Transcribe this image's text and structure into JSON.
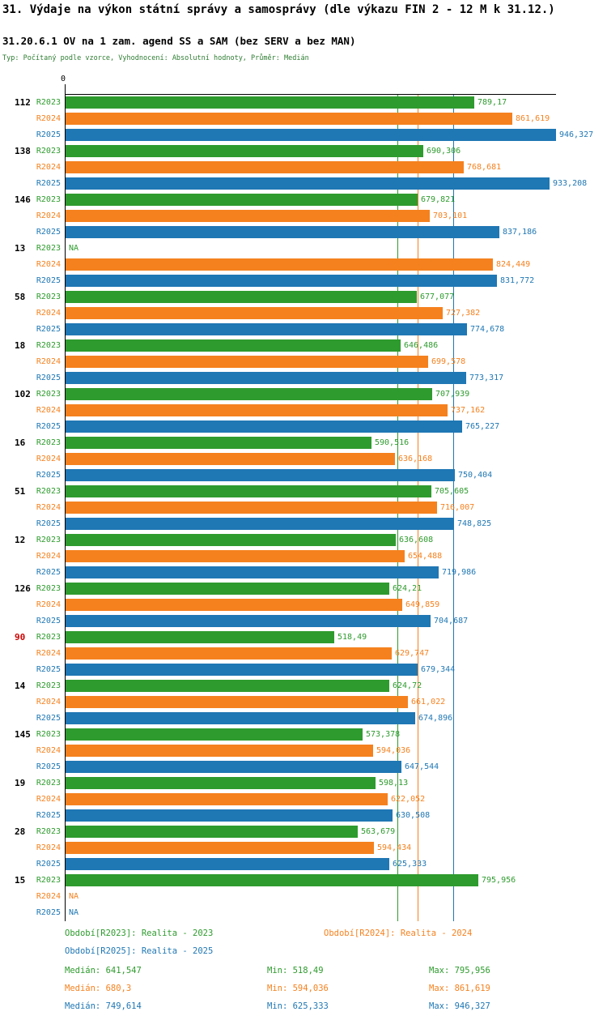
{
  "header": {
    "title": "31. Výdaje na výkon státní správy a samosprávy (dle výkazu FIN 2 - 12 M k 31.12.)",
    "subtitle": "31.20.6.1 OV na 1 zam. agend SS a SAM (bez SERV a bez MAN)",
    "meta": "Typ: Počítaný podle vzorce, Vyhodnocení: Absolutní hodnoty, Průměr: Medián"
  },
  "colors": {
    "r2023": "#2e9b2e",
    "r2024": "#f5811e",
    "r2025": "#1f77b4",
    "highlight_id": "#cc0000",
    "axis": "#000000",
    "meta_text": "#2e7d32"
  },
  "chart_data": {
    "type": "bar",
    "orientation": "horizontal",
    "title": "31.20.6.1 OV na 1 zam. agend SS a SAM (bez SERV a bez MAN)",
    "x_origin_label": "0",
    "xlim": [
      0,
      946.327
    ],
    "grid": false,
    "legend_position": "bottom",
    "series_labels": [
      "R2023",
      "R2024",
      "R2025"
    ],
    "series_colors": [
      "#2e9b2e",
      "#f5811e",
      "#1f77b4"
    ],
    "groups": [
      {
        "id": "112",
        "values": [
          789.17,
          861.619,
          946.327
        ],
        "labels": [
          "789,17",
          "861,619",
          "946,327"
        ]
      },
      {
        "id": "138",
        "values": [
          690.306,
          768.681,
          933.208
        ],
        "labels": [
          "690,306",
          "768,681",
          "933,208"
        ]
      },
      {
        "id": "146",
        "values": [
          679.821,
          703.101,
          837.186
        ],
        "labels": [
          "679,821",
          "703,101",
          "837,186"
        ]
      },
      {
        "id": "13",
        "values": [
          null,
          824.449,
          831.772
        ],
        "labels": [
          "NA",
          "824,449",
          "831,772"
        ]
      },
      {
        "id": "58",
        "values": [
          677.077,
          727.382,
          774.678
        ],
        "labels": [
          "677,077",
          "727,382",
          "774,678"
        ]
      },
      {
        "id": "18",
        "values": [
          646.486,
          699.578,
          773.317
        ],
        "labels": [
          "646,486",
          "699,578",
          "773,317"
        ]
      },
      {
        "id": "102",
        "values": [
          707.939,
          737.162,
          765.227
        ],
        "labels": [
          "707,939",
          "737,162",
          "765,227"
        ]
      },
      {
        "id": "16",
        "values": [
          590.516,
          636.168,
          750.404
        ],
        "labels": [
          "590,516",
          "636,168",
          "750,404"
        ]
      },
      {
        "id": "51",
        "values": [
          705.605,
          716.007,
          748.825
        ],
        "labels": [
          "705,605",
          "716,007",
          "748,825"
        ]
      },
      {
        "id": "12",
        "values": [
          636.608,
          654.488,
          719.986
        ],
        "labels": [
          "636,608",
          "654,488",
          "719,986"
        ]
      },
      {
        "id": "126",
        "values": [
          624.21,
          649.859,
          704.687
        ],
        "labels": [
          "624,21",
          "649,859",
          "704,687"
        ]
      },
      {
        "id": "90",
        "id_red": true,
        "values": [
          518.49,
          629.747,
          679.344
        ],
        "labels": [
          "518,49",
          "629,747",
          "679,344"
        ]
      },
      {
        "id": "14",
        "values": [
          624.72,
          661.022,
          674.896
        ],
        "labels": [
          "624,72",
          "661,022",
          "674,896"
        ]
      },
      {
        "id": "145",
        "values": [
          573.378,
          594.036,
          647.544
        ],
        "labels": [
          "573,378",
          "594,036",
          "647,544"
        ]
      },
      {
        "id": "19",
        "values": [
          598.13,
          622.052,
          630.508
        ],
        "labels": [
          "598,13",
          "622,052",
          "630,508"
        ]
      },
      {
        "id": "28",
        "values": [
          563.679,
          594.434,
          625.333
        ],
        "labels": [
          "563,679",
          "594,434",
          "625,333"
        ]
      },
      {
        "id": "15",
        "values": [
          795.956,
          null,
          null
        ],
        "labels": [
          "795,956",
          "NA",
          "NA"
        ]
      }
    ],
    "medians": [
      {
        "series": "R2023",
        "value": 641.547,
        "color": "#2e9b2e"
      },
      {
        "series": "R2024",
        "value": 680.3,
        "color": "#f5811e"
      },
      {
        "series": "R2025",
        "value": 749.614,
        "color": "#1f77b4"
      }
    ]
  },
  "legend": [
    {
      "label": "Období[R2023]: Realita - 2023",
      "color": "#2e9b2e",
      "row": 0,
      "col": 0
    },
    {
      "label": "Období[R2024]: Realita - 2024",
      "color": "#f5811e",
      "row": 0,
      "col": 1
    },
    {
      "label": "Období[R2025]: Realita - 2025",
      "color": "#1f77b4",
      "row": 1,
      "col": 0
    }
  ],
  "stats": [
    {
      "median": "Medián: 641,547",
      "min": "Min: 518,49",
      "max": "Max: 795,956",
      "color": "#2e9b2e"
    },
    {
      "median": "Medián: 680,3",
      "min": "Min: 594,036",
      "max": "Max: 861,619",
      "color": "#f5811e"
    },
    {
      "median": "Medián: 749,614",
      "min": "Min: 625,333",
      "max": "Max: 946,327",
      "color": "#1f77b4"
    }
  ]
}
